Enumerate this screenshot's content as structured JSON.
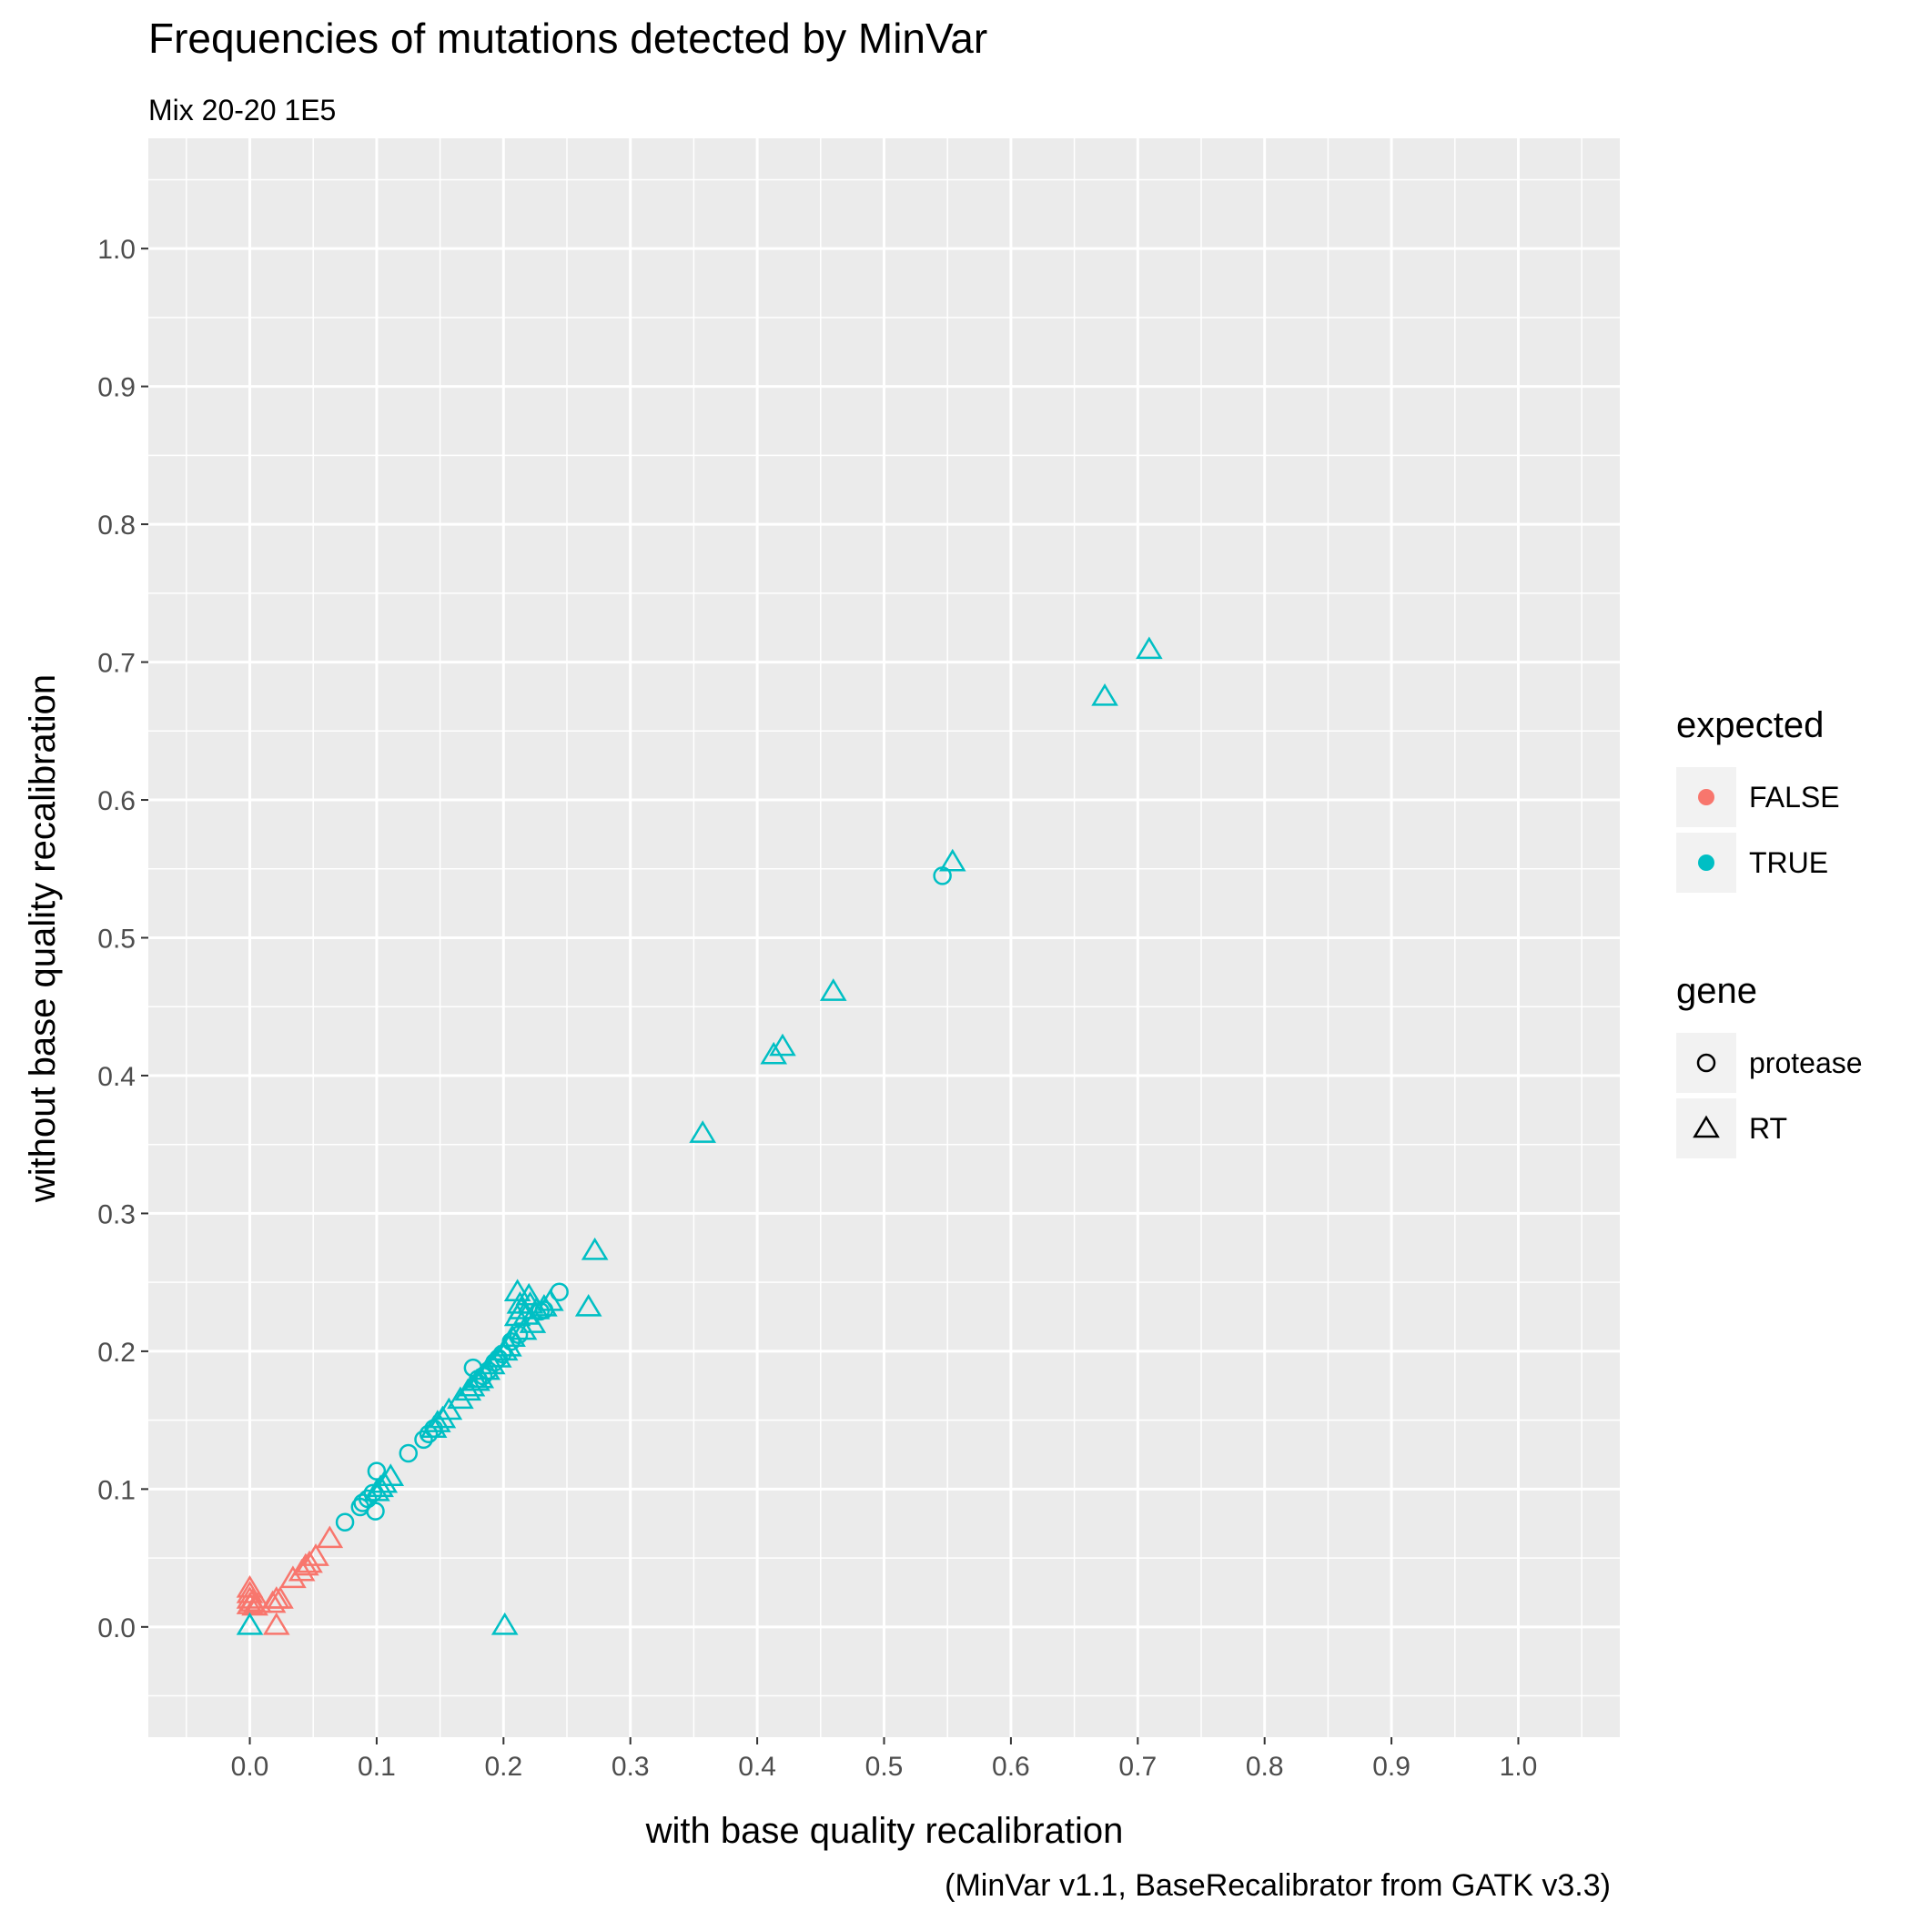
{
  "chart_data": {
    "type": "scatter",
    "title": "Frequencies of mutations detected by MinVar",
    "subtitle": "Mix 20-20 1E5",
    "xlabel": "with base quality recalibration",
    "ylabel": "without base quality recalibration",
    "caption": "(MinVar v1.1, BaseRecalibrator from GATK v3.3)",
    "xlim": [
      -0.08,
      1.08
    ],
    "ylim": [
      -0.08,
      1.08
    ],
    "xticks": [
      "0.0",
      "0.1",
      "0.2",
      "0.3",
      "0.4",
      "0.5",
      "0.6",
      "0.7",
      "0.8",
      "0.9",
      "1.0"
    ],
    "yticks": [
      "0.0",
      "0.1",
      "0.2",
      "0.3",
      "0.4",
      "0.5",
      "0.6",
      "0.7",
      "0.8",
      "0.9",
      "1.0"
    ],
    "grid": true,
    "legend_position": "right",
    "colors": {
      "FALSE": "#F8766D",
      "TRUE": "#00BFC4",
      "panel": "#EBEBEB",
      "grid": "#FFFFFF",
      "legend_key": "#F2F2F2"
    },
    "legends": [
      {
        "title": "expected",
        "entries": [
          {
            "label": "FALSE",
            "kind": "color"
          },
          {
            "label": "TRUE",
            "kind": "color"
          }
        ]
      },
      {
        "title": "gene",
        "entries": [
          {
            "label": "protease",
            "kind": "circle"
          },
          {
            "label": "RT",
            "kind": "triangle"
          }
        ]
      }
    ],
    "series": [
      {
        "expected": "FALSE",
        "gene": "RT",
        "points": [
          [
            0.0,
            0.016
          ],
          [
            0.0,
            0.02
          ],
          [
            0.0,
            0.024
          ],
          [
            0.0,
            0.028
          ],
          [
            0.002,
            0.018
          ],
          [
            0.004,
            0.015
          ],
          [
            0.007,
            0.017
          ],
          [
            0.018,
            0.017
          ],
          [
            0.021,
            0.02
          ],
          [
            0.024,
            0.02
          ],
          [
            0.021,
            0.001
          ],
          [
            0.034,
            0.035
          ],
          [
            0.041,
            0.04
          ],
          [
            0.044,
            0.044
          ],
          [
            0.047,
            0.046
          ],
          [
            0.052,
            0.051
          ],
          [
            0.063,
            0.064
          ]
        ]
      },
      {
        "expected": "TRUE",
        "gene": "protease",
        "points": [
          [
            0.075,
            0.076
          ],
          [
            0.087,
            0.087
          ],
          [
            0.089,
            0.09
          ],
          [
            0.093,
            0.093
          ],
          [
            0.097,
            0.097
          ],
          [
            0.099,
            0.084
          ],
          [
            0.1,
            0.113
          ],
          [
            0.125,
            0.126
          ],
          [
            0.137,
            0.136
          ],
          [
            0.141,
            0.14
          ],
          [
            0.145,
            0.144
          ],
          [
            0.176,
            0.188
          ],
          [
            0.18,
            0.18
          ],
          [
            0.184,
            0.182
          ],
          [
            0.188,
            0.186
          ],
          [
            0.193,
            0.192
          ],
          [
            0.196,
            0.195
          ],
          [
            0.199,
            0.198
          ],
          [
            0.206,
            0.207
          ],
          [
            0.212,
            0.212
          ],
          [
            0.229,
            0.229
          ],
          [
            0.232,
            0.23
          ],
          [
            0.244,
            0.243
          ],
          [
            0.546,
            0.545
          ]
        ]
      },
      {
        "expected": "TRUE",
        "gene": "RT",
        "points": [
          [
            0.0,
            0.001
          ],
          [
            0.201,
            0.001
          ],
          [
            0.1,
            0.098
          ],
          [
            0.103,
            0.101
          ],
          [
            0.106,
            0.104
          ],
          [
            0.111,
            0.109
          ],
          [
            0.145,
            0.144
          ],
          [
            0.148,
            0.148
          ],
          [
            0.152,
            0.151
          ],
          [
            0.157,
            0.157
          ],
          [
            0.166,
            0.165
          ],
          [
            0.172,
            0.171
          ],
          [
            0.175,
            0.174
          ],
          [
            0.179,
            0.178
          ],
          [
            0.182,
            0.18
          ],
          [
            0.187,
            0.186
          ],
          [
            0.191,
            0.19
          ],
          [
            0.196,
            0.195
          ],
          [
            0.201,
            0.2
          ],
          [
            0.204,
            0.203
          ],
          [
            0.207,
            0.21
          ],
          [
            0.211,
            0.225
          ],
          [
            0.214,
            0.23
          ],
          [
            0.216,
            0.215
          ],
          [
            0.218,
            0.226
          ],
          [
            0.221,
            0.234
          ],
          [
            0.223,
            0.22
          ],
          [
            0.226,
            0.23
          ],
          [
            0.211,
            0.243
          ],
          [
            0.22,
            0.24
          ],
          [
            0.232,
            0.232
          ],
          [
            0.237,
            0.236
          ],
          [
            0.213,
            0.234
          ],
          [
            0.267,
            0.232
          ],
          [
            0.272,
            0.273
          ],
          [
            0.357,
            0.358
          ],
          [
            0.413,
            0.415
          ],
          [
            0.42,
            0.421
          ],
          [
            0.46,
            0.461
          ],
          [
            0.554,
            0.555
          ],
          [
            0.674,
            0.675
          ],
          [
            0.709,
            0.709
          ]
        ]
      }
    ]
  }
}
